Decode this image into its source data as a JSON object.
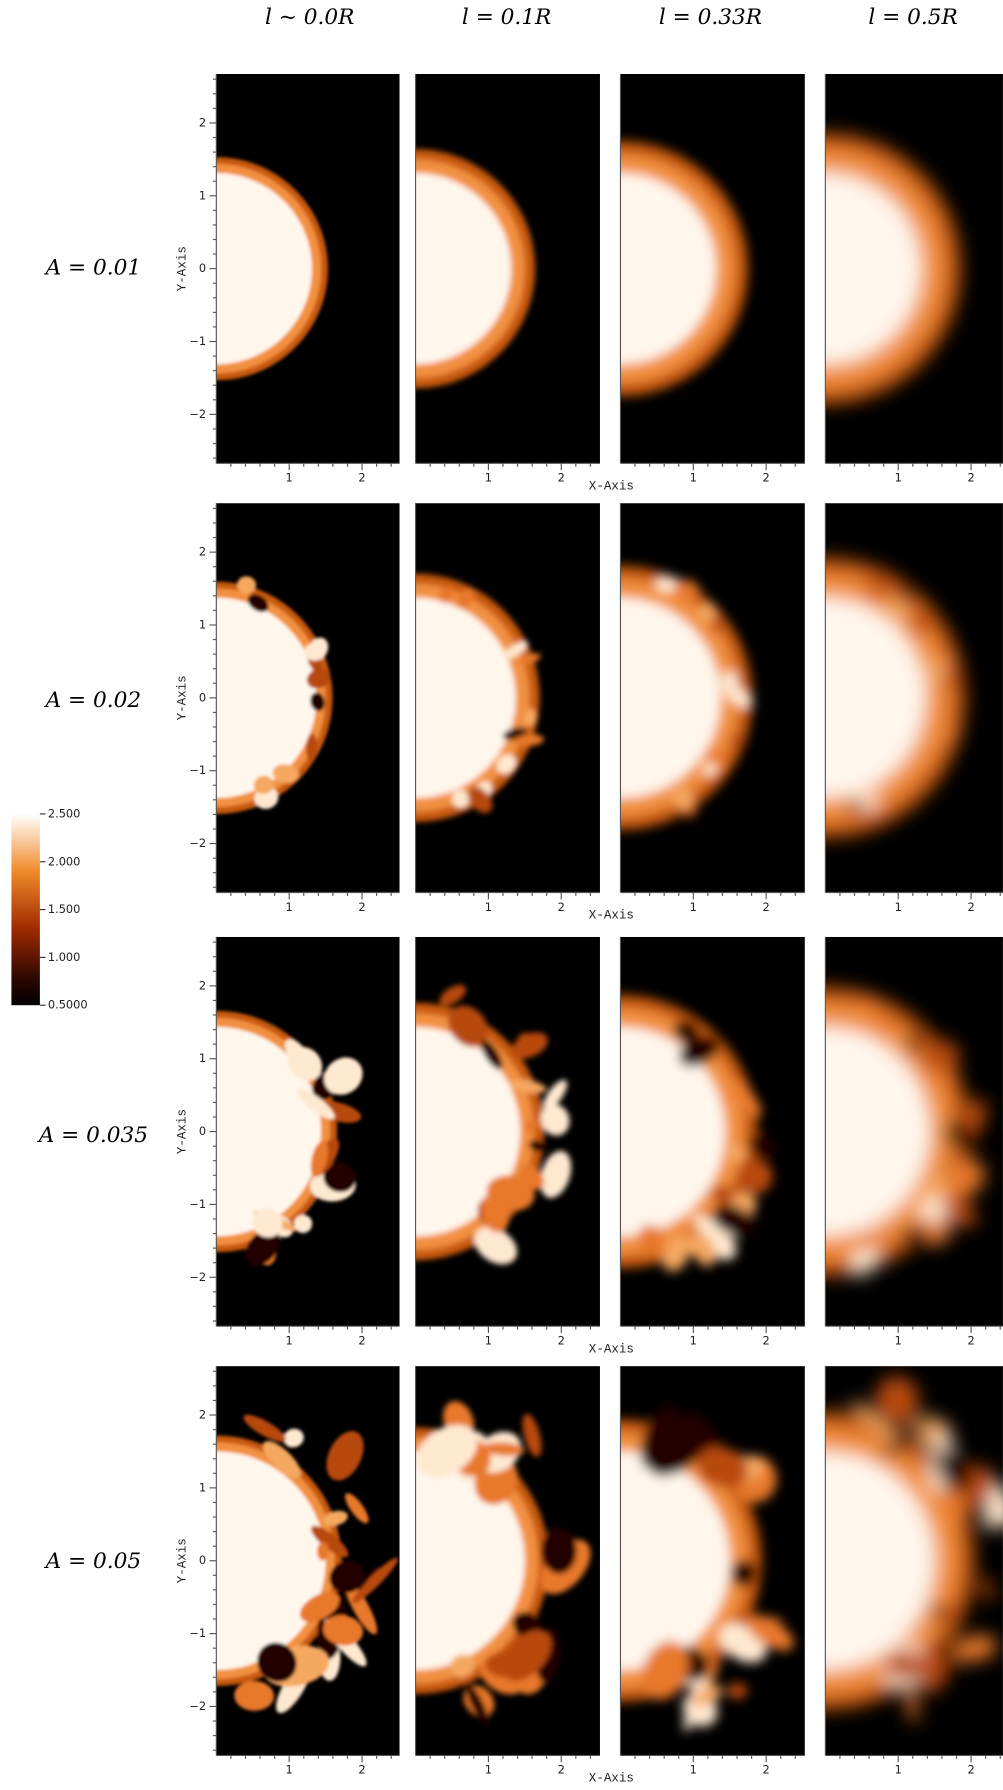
{
  "column_headers": [
    "l ~ 0.0R",
    "l = 0.1R",
    "l = 0.33R",
    "l = 0.5R"
  ],
  "row_labels": [
    "A = 0.01",
    "A = 0.02",
    "A = 0.035",
    "A = 0.05"
  ],
  "axes": {
    "x_label": "X-Axis",
    "y_label": "Y-Axis",
    "xticks": [
      "1",
      "2"
    ],
    "yticks": [
      "2",
      "1",
      "0",
      "−1",
      "−2"
    ]
  },
  "colorbar": {
    "labels": [
      "2.500",
      "2.000",
      "1.500",
      "1.000",
      "0.5000"
    ]
  }
}
